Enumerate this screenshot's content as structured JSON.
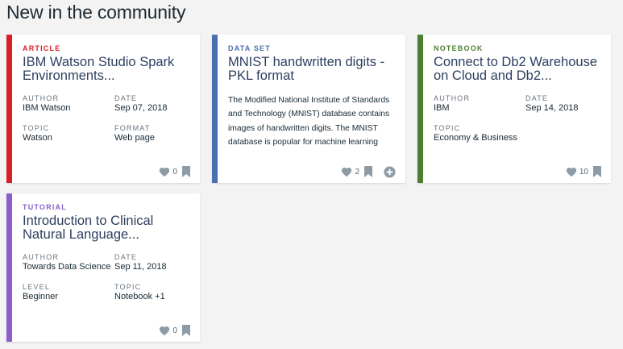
{
  "page": {
    "heading": "New in the community"
  },
  "colors": {
    "article": "#da1e28",
    "dataset": "#4a6fae",
    "notebook": "#4d7f32",
    "tutorial": "#8a5ecc"
  },
  "cards": [
    {
      "type": "ARTICLE",
      "title": "IBM Watson Studio Spark Environments...",
      "author_label": "AUTHOR",
      "author": "IBM Watson",
      "date_label": "DATE",
      "date": "Sep 07, 2018",
      "f3_label": "TOPIC",
      "f3": "Watson",
      "f4_label": "FORMAT",
      "f4": "Web page",
      "likes": "0",
      "icons": [
        "heart-icon",
        "bookmark-icon"
      ]
    },
    {
      "type": "DATA SET",
      "title": "MNIST handwritten digits - PKL format",
      "description": "The Modified National Institute of Standards and Technology (MNIST) database contains images of handwritten digits. The MNIST database is popular for machine learning and deep learning",
      "likes": "2",
      "icons": [
        "heart-icon",
        "bookmark-icon",
        "add-circle-icon"
      ]
    },
    {
      "type": "NOTEBOOK",
      "title": "Connect to Db2 Warehouse on Cloud and Db2...",
      "author_label": "AUTHOR",
      "author": "IBM",
      "date_label": "DATE",
      "date": "Sep 14, 2018",
      "f3_label": "TOPIC",
      "f3": "Economy & Business",
      "likes": "10",
      "icons": [
        "heart-icon",
        "bookmark-icon"
      ]
    },
    {
      "type": "TUTORIAL",
      "title": "Introduction to Clinical Natural Language...",
      "author_label": "AUTHOR",
      "author": "Towards Data Science",
      "date_label": "DATE",
      "date": "Sep 11, 2018",
      "f3_label": "LEVEL",
      "f3": "Beginner",
      "f4_label": "TOPIC",
      "f4": "Notebook +1",
      "likes": "0",
      "icons": [
        "heart-icon",
        "bookmark-icon"
      ]
    }
  ]
}
